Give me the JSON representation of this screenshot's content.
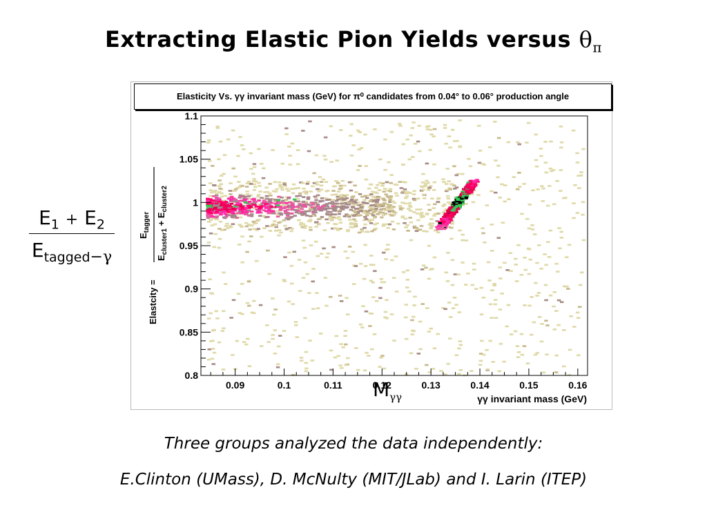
{
  "slide": {
    "title_text": "Extracting Elastic Pion Yields versus ",
    "title_theta": "θ",
    "title_pi": "π",
    "fraction": {
      "num_e1": "E",
      "num_e1_sub": "1",
      "num_plus": "+",
      "num_e2": "E",
      "num_e2_sub": "2",
      "den_e": "E",
      "den_sub": "tagged",
      "den_op": "−γ"
    },
    "mgg_label": "M",
    "mgg_sub": "γγ",
    "footnote_line1": "Three groups analyzed the data independently:",
    "footnote_line2": "E.Clinton (UMass), D. McNulty (MIT/JLab) and I. Larin (ITEP)"
  },
  "chart_data": {
    "type": "heatmap",
    "title": "Elasticity Vs. γγ invariant mass (GeV) for π⁰ candidates from 0.04° to 0.06° production angle",
    "xlabel": "γγ invariant mass (GeV)",
    "ylabel_prefix": "Elastcity = ",
    "ylabel_num": "E",
    "ylabel_num_sub": "tagger",
    "ylabel_den": "E",
    "ylabel_den_sub1": "cluster1",
    "ylabel_den_plus": " + E",
    "ylabel_den_sub2": "cluster2",
    "xlim": [
      0.083,
      0.162
    ],
    "ylim": [
      0.8,
      1.1
    ],
    "x_ticks": [
      "0.09",
      "0.1",
      "0.11",
      "0.12",
      "0.13",
      "0.14",
      "0.15",
      "0.16"
    ],
    "y_ticks": [
      "0.8",
      "0.85",
      "0.9",
      "0.95",
      "1",
      "1.05",
      "1.1"
    ],
    "grid": false,
    "color_scale": [
      "#dfd9a8",
      "#c7b98a",
      "#a88b86",
      "#a4868e",
      "#e85ba0",
      "#ff2aa8",
      "#ff0066",
      "#e4004f",
      "#33cc55",
      "#000000"
    ],
    "clusters": [
      {
        "name": "background",
        "x_range": [
          0.084,
          0.161
        ],
        "y_range": [
          0.8,
          1.095
        ],
        "level_peak": 1
      },
      {
        "name": "band-near-1",
        "x_center": 0.095,
        "x_range": [
          0.084,
          0.122
        ],
        "y_center": 0.995,
        "y_spread": 0.012,
        "level_peak": 7
      },
      {
        "name": "pi0-peak",
        "x_range": [
          0.1315,
          0.1385
        ],
        "y_range": [
          0.97,
          1.025
        ],
        "level_peak": 9
      }
    ]
  }
}
